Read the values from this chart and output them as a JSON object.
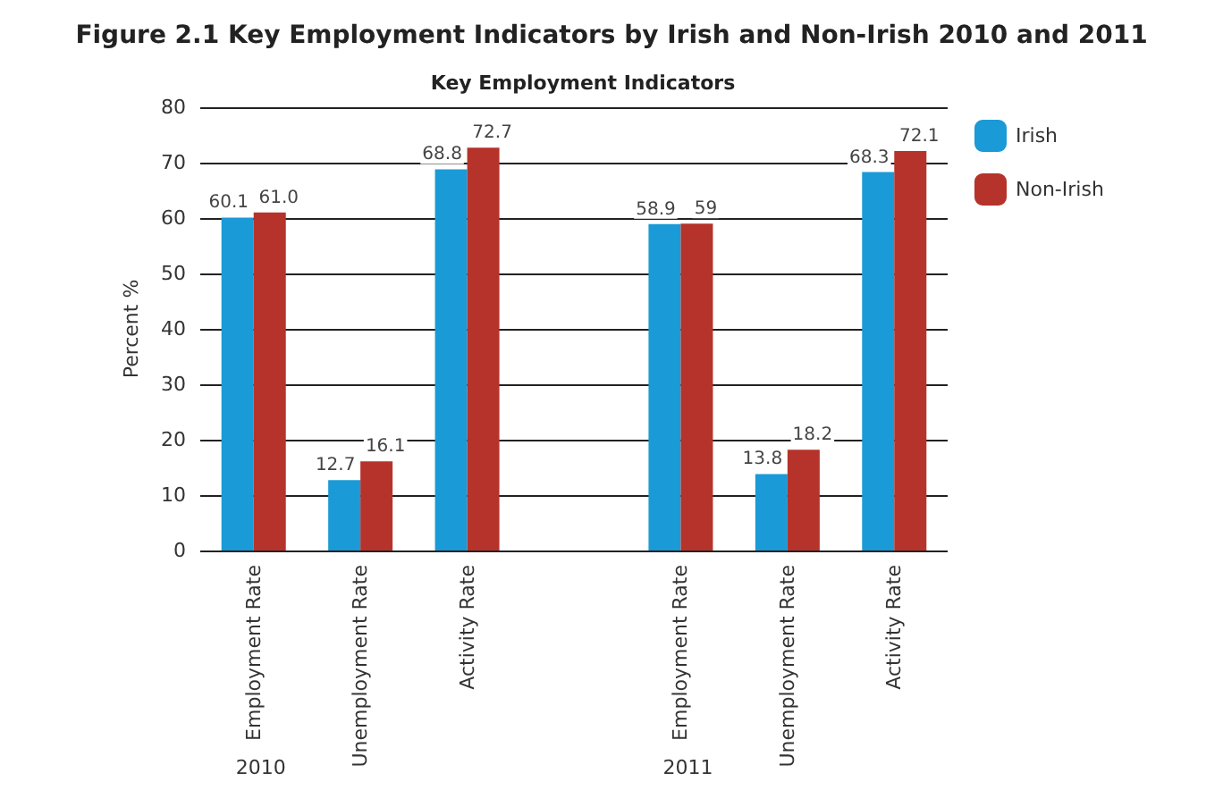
{
  "chart_data": {
    "type": "bar",
    "title": "Figure 2.1 Key Employment Indicators by Irish and Non-Irish 2010 and 2011",
    "subtitle": "Key Employment Indicators",
    "ylabel": "Percent %",
    "categories": [
      "Employment Rate",
      "Unemployment Rate",
      "Activity Rate",
      null,
      "Employment Rate",
      "Unemployment Rate",
      "Activity Rate"
    ],
    "series": [
      {
        "name": "Irish",
        "color": "#1a9ad6",
        "values": [
          60.1,
          12.7,
          68.8,
          null,
          58.9,
          13.8,
          68.3
        ],
        "value_labels": [
          "60.1",
          "12.7",
          "68.8",
          null,
          "58.9",
          "13.8",
          "68.3"
        ]
      },
      {
        "name": "Non-Irish",
        "color": "#b5332b",
        "values": [
          61.0,
          16.1,
          72.7,
          null,
          59,
          18.2,
          72.1
        ],
        "value_labels": [
          "61.0",
          "16.1",
          "72.7",
          null,
          "59",
          "18.2",
          "72.1"
        ]
      }
    ],
    "annotations": [
      "2010",
      "2011"
    ],
    "ylim": [
      0,
      80
    ],
    "yticks": [
      0,
      10,
      20,
      30,
      40,
      50,
      60,
      70,
      80
    ],
    "grid": "y",
    "legend": "top right"
  }
}
